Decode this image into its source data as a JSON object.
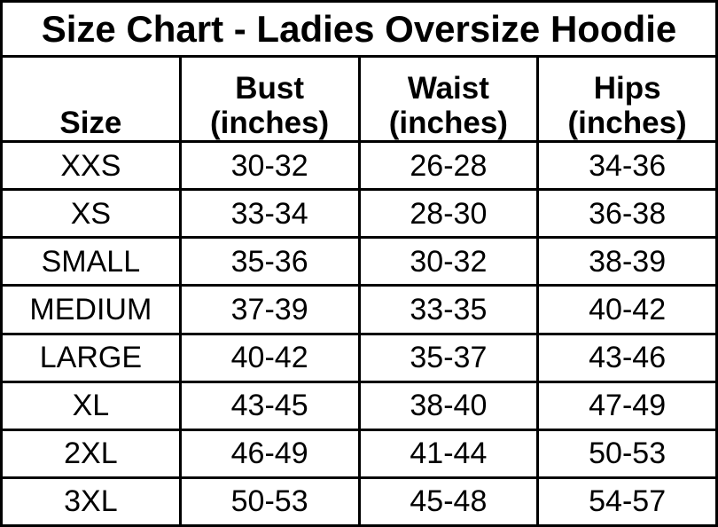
{
  "title": "Size Chart - Ladies Oversize Hoodie",
  "table": {
    "headers": [
      "Size",
      "Bust\n(inches)",
      "Waist\n(inches)",
      "Hips\n(inches)"
    ],
    "rows": [
      {
        "size": "XXS",
        "bust": "30-32",
        "waist": "26-28",
        "hips": "34-36"
      },
      {
        "size": "XS",
        "bust": "33-34",
        "waist": "28-30",
        "hips": "36-38"
      },
      {
        "size": "SMALL",
        "bust": "35-36",
        "waist": "30-32",
        "hips": "38-39"
      },
      {
        "size": "MEDIUM",
        "bust": "37-39",
        "waist": "33-35",
        "hips": "40-42"
      },
      {
        "size": "LARGE",
        "bust": "40-42",
        "waist": "35-37",
        "hips": "43-46"
      },
      {
        "size": "XL",
        "bust": "43-45",
        "waist": "38-40",
        "hips": "47-49"
      },
      {
        "size": "2XL",
        "bust": "46-49",
        "waist": "41-44",
        "hips": "50-53"
      },
      {
        "size": "3XL",
        "bust": "50-53",
        "waist": "45-48",
        "hips": "54-57"
      }
    ]
  },
  "colors": {
    "background": "#ffffff",
    "border": "#000000",
    "text": "#000000"
  },
  "chart_data": {
    "type": "table",
    "title": "Size Chart - Ladies Oversize Hoodie",
    "columns": [
      "Size",
      "Bust (inches)",
      "Waist (inches)",
      "Hips (inches)"
    ],
    "rows": [
      [
        "XXS",
        "30-32",
        "26-28",
        "34-36"
      ],
      [
        "XS",
        "33-34",
        "28-30",
        "36-38"
      ],
      [
        "SMALL",
        "35-36",
        "30-32",
        "38-39"
      ],
      [
        "MEDIUM",
        "37-39",
        "33-35",
        "40-42"
      ],
      [
        "LARGE",
        "40-42",
        "35-37",
        "43-46"
      ],
      [
        "XL",
        "43-45",
        "38-40",
        "47-49"
      ],
      [
        "2XL",
        "46-49",
        "41-44",
        "50-53"
      ],
      [
        "3XL",
        "50-53",
        "45-48",
        "54-57"
      ]
    ],
    "layout": {
      "grid": true,
      "header_style": "bold",
      "title_position": "top-merged-row"
    }
  }
}
